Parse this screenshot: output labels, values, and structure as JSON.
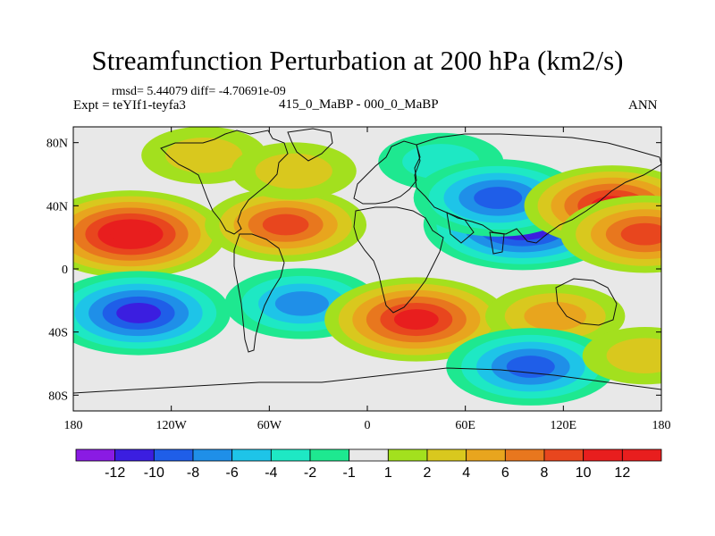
{
  "header": {
    "title": "Streamfunction Perturbation at 200 hPa (km2/s)",
    "stats": "rmsd= 5.44079 diff= -4.70691e-09",
    "experiment": "Expt = teYIf1-teyfa3",
    "center_label": "415_0_MaBP - 000_0_MaBP",
    "season": "ANN"
  },
  "chart_data": {
    "type": "heatmap",
    "title": "Streamfunction Perturbation at 200 hPa (km2/s)",
    "xlabel": "",
    "ylabel": "",
    "x_ticks": [
      "180",
      "120W",
      "60W",
      "0",
      "60E",
      "120E",
      "180"
    ],
    "y_ticks": [
      "80N",
      "40N",
      "0",
      "40S",
      "80S"
    ],
    "xlim": [
      -180,
      180
    ],
    "ylim": [
      -90,
      90
    ],
    "colorbar": {
      "labels": [
        "-12",
        "-10",
        "-8",
        "-6",
        "-4",
        "-2",
        "-1",
        "1",
        "2",
        "4",
        "6",
        "8",
        "10",
        "12"
      ],
      "colors": [
        "#8a1be3",
        "#3b1ee0",
        "#1f5ee8",
        "#1f8fe8",
        "#1ec4e8",
        "#1ee8c4",
        "#1ee890",
        "#e8e8e8",
        "#a3e01e",
        "#d9c81e",
        "#e8a51e",
        "#e8771e",
        "#e8461e",
        "#e81e1e"
      ]
    },
    "features": [
      {
        "lon": -145,
        "lat": 22,
        "value": 12
      },
      {
        "lon": -140,
        "lat": -28,
        "value": -11
      },
      {
        "lon": -100,
        "lat": 72,
        "value": 3
      },
      {
        "lon": -50,
        "lat": 28,
        "value": 8
      },
      {
        "lon": -45,
        "lat": 62,
        "value": 3
      },
      {
        "lon": -40,
        "lat": -22,
        "value": -7
      },
      {
        "lon": 30,
        "lat": -32,
        "value": 11
      },
      {
        "lon": 45,
        "lat": 68,
        "value": -3
      },
      {
        "lon": 95,
        "lat": 28,
        "value": -13
      },
      {
        "lon": 80,
        "lat": 45,
        "value": -9
      },
      {
        "lon": 115,
        "lat": -30,
        "value": 5
      },
      {
        "lon": 100,
        "lat": -62,
        "value": -9
      },
      {
        "lon": 150,
        "lat": 40,
        "value": 10
      },
      {
        "lon": 170,
        "lat": 22,
        "value": 9
      },
      {
        "lon": 170,
        "lat": -55,
        "value": 3
      }
    ]
  }
}
